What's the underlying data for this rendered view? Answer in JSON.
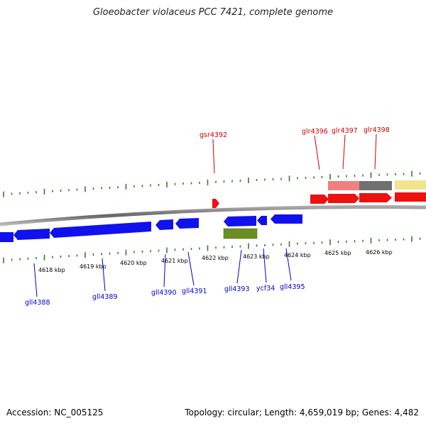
{
  "title": "Gloeobacter violaceus PCC 7421, complete genome",
  "footer": {
    "accession": "Accession: NC_005125",
    "topology": "Topology: circular; Length: 4,659,019 bp; Genes: 4,482"
  },
  "colors": {
    "forward_gene": "#ee1111",
    "reverse_gene": "#1111ee",
    "rna_gene": "#6b8e23",
    "pseudo_gene_light": "#f08080",
    "pseudo_gene_dark": "#707070",
    "misc_feature": "#f0e68c",
    "tick": "#2e7d32",
    "backbone": "#888888",
    "forward_label": "#cc0000",
    "reverse_label": "#0000cc"
  },
  "scale_labels": [
    "4618 kbp",
    "4619 kbp",
    "4620 kbp",
    "4621 kbp",
    "4622 kbp",
    "4623 kbp",
    "4624 kbp",
    "4625 kbp",
    "4626 kbp"
  ],
  "forward_labels": [
    "gsr4392",
    "glr4396",
    "glr4397",
    "glr4398"
  ],
  "reverse_labels": [
    "gll4388",
    "gll4389",
    "gll4390",
    "gll4391",
    "gll4393",
    "ycf34",
    "gll4395"
  ]
}
